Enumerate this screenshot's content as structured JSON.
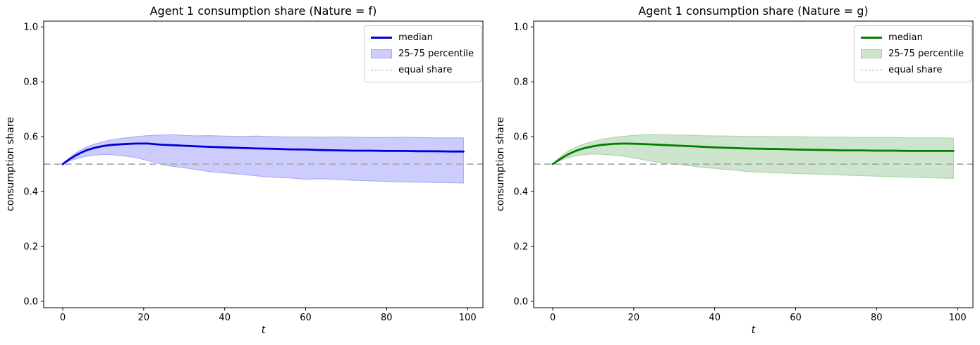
{
  "figure": {
    "background": "#ffffff"
  },
  "chart_data": [
    {
      "type": "line",
      "title": "Agent 1 consumption share (Nature = f)",
      "xlabel": "t",
      "ylabel": "consumption share",
      "xlim": [
        -4.7,
        103.8
      ],
      "ylim": [
        -0.023,
        1.021
      ],
      "grid": false,
      "ref_value": 0.5,
      "legend": {
        "position": "upper right",
        "entries": [
          "median",
          "25-75 percentile",
          "equal share"
        ]
      },
      "colors": {
        "line": "#0000d6",
        "band_fill": "#ccccff",
        "band_edge": "#a6a6f0",
        "ref": "#ababab"
      },
      "xticks": [
        {
          "v": 0,
          "label": "0"
        },
        {
          "v": 20,
          "label": "20"
        },
        {
          "v": 40,
          "label": "40"
        },
        {
          "v": 60,
          "label": "60"
        },
        {
          "v": 80,
          "label": "80"
        },
        {
          "v": 100,
          "label": "100"
        }
      ],
      "yticks": [
        {
          "v": 0,
          "label": "0.0"
        },
        {
          "v": 0.2,
          "label": "0.2"
        },
        {
          "v": 0.4,
          "label": "0.4"
        },
        {
          "v": 0.6,
          "label": "0.6"
        },
        {
          "v": 0.8,
          "label": "0.8"
        },
        {
          "v": 1.0,
          "label": "1.0"
        }
      ],
      "x": [
        0,
        1,
        2,
        3,
        4,
        5,
        6,
        8,
        10,
        12,
        15,
        18,
        21,
        24,
        27,
        30,
        33,
        36,
        40,
        44,
        48,
        52,
        56,
        60,
        64,
        68,
        72,
        76,
        80,
        84,
        88,
        92,
        96,
        99
      ],
      "series": [
        {
          "name": "median",
          "values": [
            0.5,
            0.511,
            0.521,
            0.53,
            0.538,
            0.545,
            0.551,
            0.56,
            0.566,
            0.57,
            0.573,
            0.575,
            0.575,
            0.571,
            0.569,
            0.567,
            0.565,
            0.563,
            0.561,
            0.559,
            0.557,
            0.556,
            0.554,
            0.553,
            0.551,
            0.55,
            0.549,
            0.549,
            0.548,
            0.548,
            0.547,
            0.547,
            0.546,
            0.546
          ]
        },
        {
          "name": "p75",
          "values": [
            0.5,
            0.514,
            0.527,
            0.538,
            0.548,
            0.556,
            0.563,
            0.574,
            0.582,
            0.588,
            0.595,
            0.6,
            0.604,
            0.606,
            0.607,
            0.605,
            0.603,
            0.604,
            0.602,
            0.601,
            0.602,
            0.6,
            0.599,
            0.599,
            0.598,
            0.599,
            0.598,
            0.597,
            0.597,
            0.598,
            0.597,
            0.596,
            0.596,
            0.596
          ]
        },
        {
          "name": "p25",
          "values": [
            0.5,
            0.507,
            0.513,
            0.518,
            0.522,
            0.526,
            0.529,
            0.533,
            0.535,
            0.534,
            0.53,
            0.524,
            0.513,
            0.501,
            0.492,
            0.487,
            0.48,
            0.473,
            0.468,
            0.463,
            0.457,
            0.452,
            0.45,
            0.445,
            0.447,
            0.444,
            0.441,
            0.439,
            0.437,
            0.435,
            0.434,
            0.433,
            0.432,
            0.431
          ]
        }
      ]
    },
    {
      "type": "line",
      "title": "Agent 1 consumption share (Nature = g)",
      "xlabel": "t",
      "ylabel": "consumption share",
      "xlim": [
        -4.7,
        103.8
      ],
      "ylim": [
        -0.023,
        1.021
      ],
      "grid": false,
      "ref_value": 0.5,
      "legend": {
        "position": "upper right",
        "entries": [
          "median",
          "25-75 percentile",
          "equal share"
        ]
      },
      "colors": {
        "line": "#008000",
        "band_fill": "#cce5cc",
        "band_edge": "#a6d2a6",
        "ref": "#ababab"
      },
      "xticks": [
        {
          "v": 0,
          "label": "0"
        },
        {
          "v": 20,
          "label": "20"
        },
        {
          "v": 40,
          "label": "40"
        },
        {
          "v": 60,
          "label": "60"
        },
        {
          "v": 80,
          "label": "80"
        },
        {
          "v": 100,
          "label": "100"
        }
      ],
      "yticks": [
        {
          "v": 0,
          "label": "0.0"
        },
        {
          "v": 0.2,
          "label": "0.2"
        },
        {
          "v": 0.4,
          "label": "0.4"
        },
        {
          "v": 0.6,
          "label": "0.6"
        },
        {
          "v": 0.8,
          "label": "0.8"
        },
        {
          "v": 1.0,
          "label": "1.0"
        }
      ],
      "x": [
        0,
        1,
        2,
        3,
        4,
        5,
        6,
        8,
        10,
        12,
        15,
        18,
        21,
        24,
        27,
        30,
        33,
        36,
        40,
        44,
        48,
        52,
        56,
        60,
        64,
        68,
        72,
        76,
        80,
        84,
        88,
        92,
        96,
        99
      ],
      "series": [
        {
          "name": "median",
          "values": [
            0.5,
            0.51,
            0.52,
            0.529,
            0.537,
            0.544,
            0.55,
            0.559,
            0.565,
            0.57,
            0.574,
            0.575,
            0.574,
            0.572,
            0.57,
            0.568,
            0.566,
            0.564,
            0.561,
            0.559,
            0.557,
            0.556,
            0.555,
            0.553,
            0.552,
            0.551,
            0.55,
            0.55,
            0.549,
            0.549,
            0.548,
            0.548,
            0.548,
            0.548
          ]
        },
        {
          "name": "p75",
          "values": [
            0.5,
            0.515,
            0.528,
            0.539,
            0.549,
            0.557,
            0.564,
            0.575,
            0.583,
            0.59,
            0.597,
            0.602,
            0.606,
            0.608,
            0.607,
            0.606,
            0.606,
            0.604,
            0.603,
            0.602,
            0.601,
            0.601,
            0.6,
            0.6,
            0.599,
            0.598,
            0.598,
            0.597,
            0.597,
            0.597,
            0.596,
            0.596,
            0.596,
            0.595
          ]
        },
        {
          "name": "p25",
          "values": [
            0.5,
            0.508,
            0.514,
            0.52,
            0.524,
            0.528,
            0.531,
            0.535,
            0.537,
            0.536,
            0.533,
            0.528,
            0.52,
            0.511,
            0.505,
            0.501,
            0.496,
            0.49,
            0.484,
            0.479,
            0.473,
            0.47,
            0.468,
            0.466,
            0.464,
            0.462,
            0.46,
            0.458,
            0.456,
            0.454,
            0.452,
            0.451,
            0.449,
            0.448
          ]
        }
      ]
    }
  ]
}
